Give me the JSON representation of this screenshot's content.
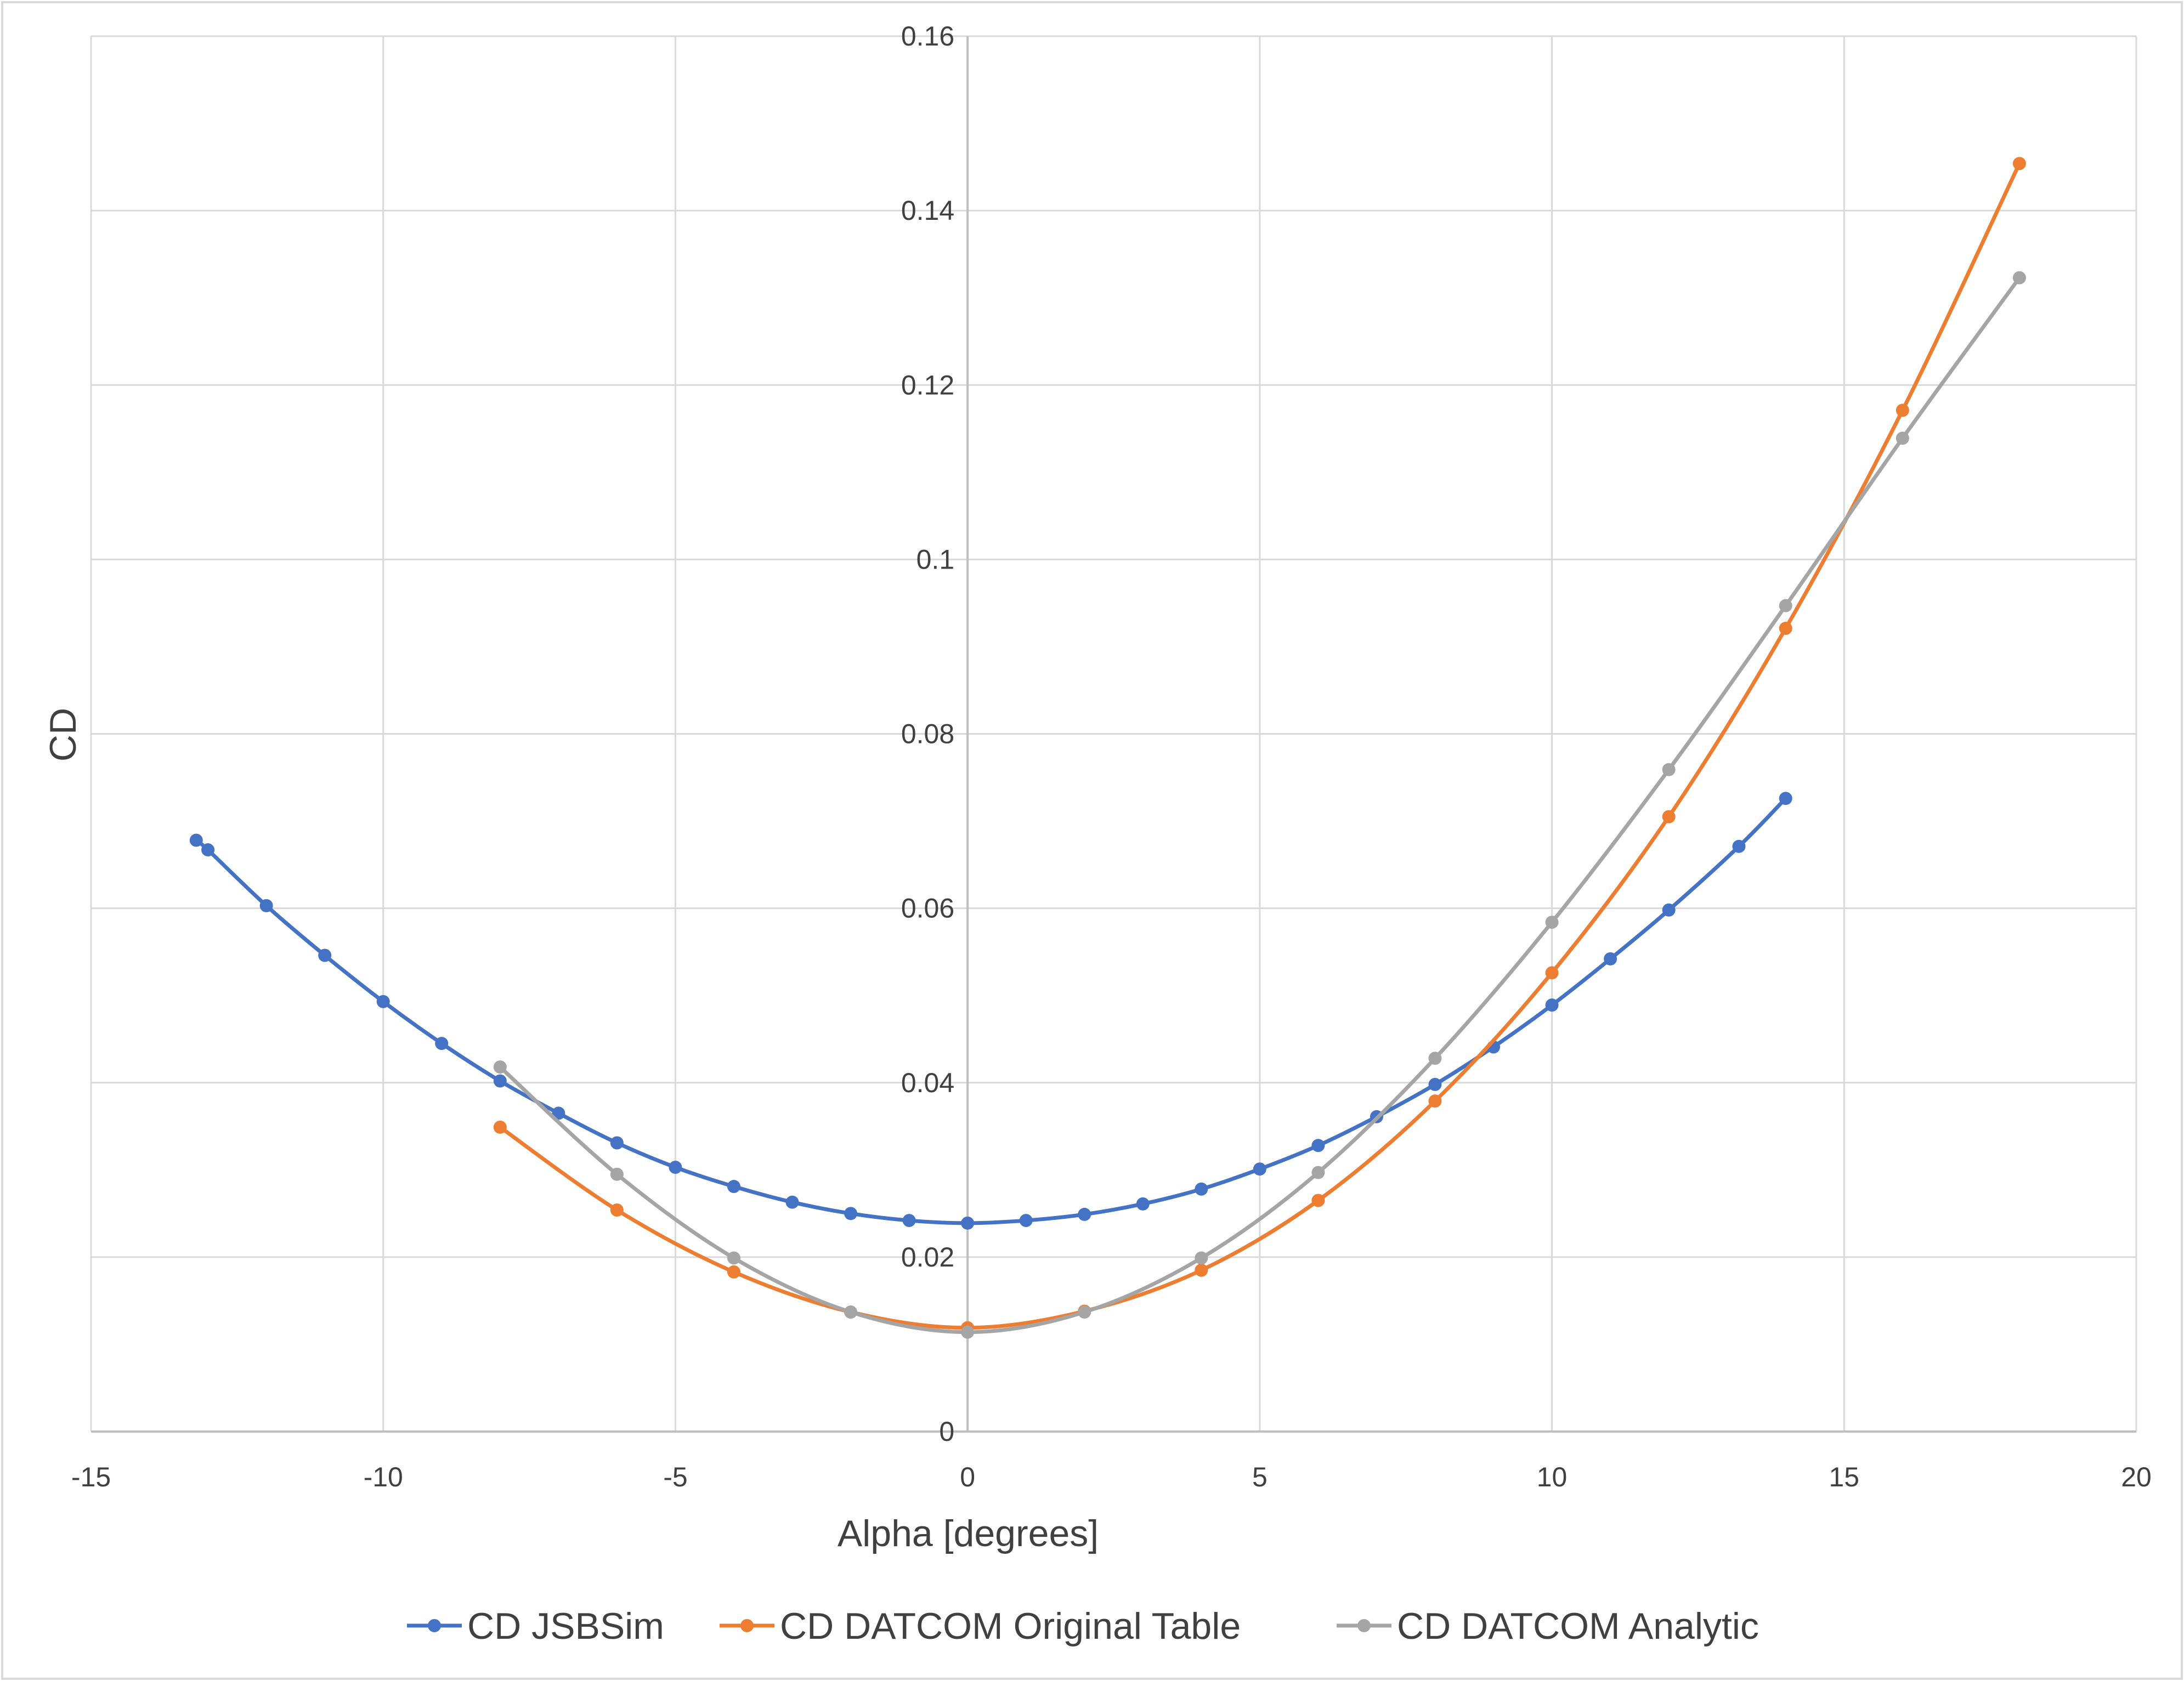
{
  "chart_data": {
    "type": "line",
    "title": "",
    "xlabel": "Alpha [degrees]",
    "ylabel": "CD",
    "xlim": [
      -15,
      20
    ],
    "ylim": [
      0,
      0.16
    ],
    "x_ticks": [
      -15,
      -10,
      -5,
      0,
      5,
      10,
      15,
      20
    ],
    "x_tick_labels": [
      "-15",
      "-10",
      "-5",
      "0",
      "5",
      "10",
      "15",
      "20"
    ],
    "y_ticks": [
      0,
      0.02,
      0.04,
      0.06,
      0.08,
      0.1,
      0.12,
      0.14,
      0.16
    ],
    "y_tick_labels": [
      "0",
      "0.02",
      "0.04",
      "0.06",
      "0.08",
      "0.1",
      "0.12",
      "0.14",
      "0.16"
    ],
    "grid": true,
    "legend_position": "bottom",
    "series": [
      {
        "name": "CD JSBSim",
        "color": "#4472C4",
        "x": [
          -13.2,
          -13,
          -12,
          -11,
          -10,
          -9,
          -8,
          -7,
          -6,
          -5,
          -4,
          -3,
          -2,
          -1,
          0,
          1,
          2,
          3,
          4,
          5,
          6,
          7,
          8,
          9,
          10,
          11,
          12,
          13.2,
          14
        ],
        "y": [
          0.0678,
          0.0667,
          0.0603,
          0.0546,
          0.0493,
          0.0445,
          0.0402,
          0.0365,
          0.0331,
          0.0303,
          0.0281,
          0.0263,
          0.025,
          0.0242,
          0.0239,
          0.0242,
          0.0249,
          0.0261,
          0.0278,
          0.0301,
          0.0328,
          0.0361,
          0.0398,
          0.0441,
          0.0489,
          0.0542,
          0.0598,
          0.0671,
          0.0726
        ]
      },
      {
        "name": "CD DATCOM Original Table",
        "color": "#ED7D31",
        "x": [
          -8,
          -6,
          -4,
          -2,
          0,
          2,
          4,
          6,
          8,
          10,
          12,
          14,
          16,
          18
        ],
        "y": [
          0.0349,
          0.0254,
          0.0183,
          0.0137,
          0.0119,
          0.0138,
          0.0185,
          0.0265,
          0.0379,
          0.0526,
          0.0705,
          0.0921,
          0.1171,
          0.1454
        ]
      },
      {
        "name": "CD DATCOM Analytic",
        "color": "#A5A5A5",
        "x": [
          -8,
          -6,
          -4,
          -2,
          0,
          2,
          4,
          6,
          8,
          10,
          12,
          14,
          16,
          18
        ],
        "y": [
          0.0418,
          0.0295,
          0.0199,
          0.0137,
          0.0114,
          0.0137,
          0.0199,
          0.0297,
          0.0428,
          0.0584,
          0.0759,
          0.0947,
          0.1139,
          0.1323
        ]
      }
    ]
  }
}
